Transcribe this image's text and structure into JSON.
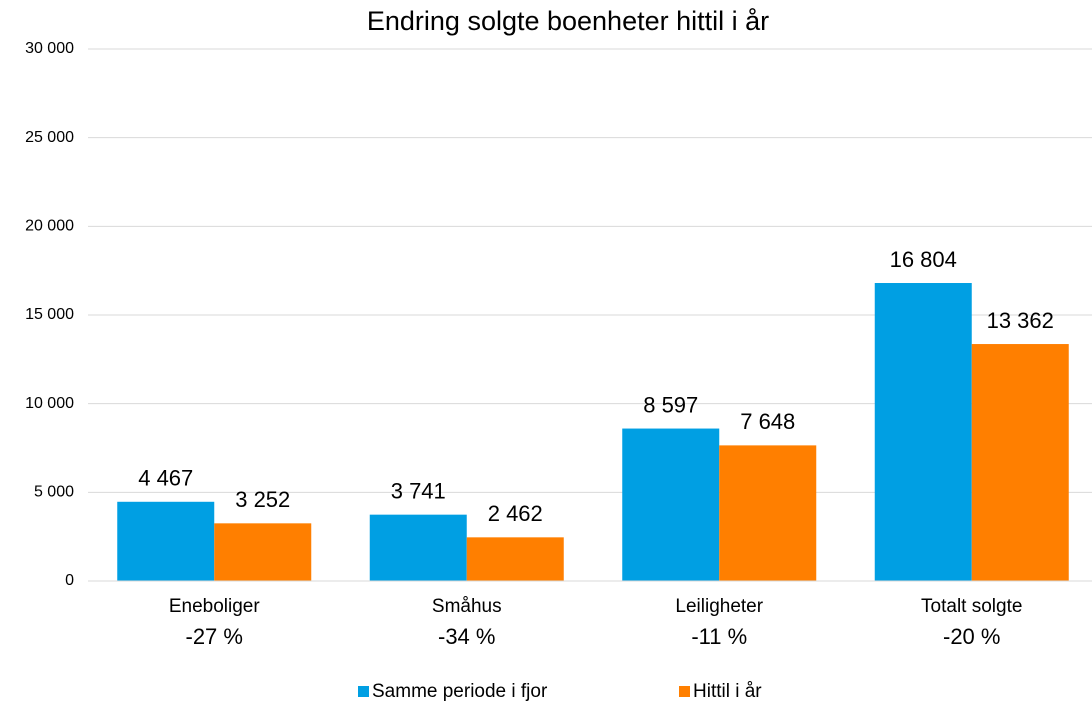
{
  "chart_data": {
    "type": "bar",
    "title": "Endring solgte boenheter hittil i år",
    "categories": [
      "Eneboliger",
      "Småhus",
      "Leiligheter",
      "Totalt solgte"
    ],
    "annotations": [
      "-27 %",
      "-34 %",
      "-11 %",
      "-20 %"
    ],
    "series": [
      {
        "name": "Samme periode i fjor",
        "color": "#009fe3",
        "values": [
          4467,
          3741,
          8597,
          16804
        ],
        "value_labels": [
          "4 467",
          "3 741",
          "8 597",
          "16 804"
        ]
      },
      {
        "name": "Hittil i år",
        "color": "#ff7f00",
        "values": [
          3252,
          2462,
          7648,
          13362
        ],
        "value_labels": [
          "3 252",
          "2 462",
          "7 648",
          "13 362"
        ]
      }
    ],
    "ylim": [
      0,
      30000
    ],
    "yticks": [
      0,
      {
        "value": 5000,
        "label": "5 000"
      },
      {
        "value": 10000,
        "label": "10 000"
      },
      {
        "value": 15000,
        "label": "15 000"
      },
      {
        "value": 20000,
        "label": "20 000"
      },
      {
        "value": 25000,
        "label": "25 000"
      },
      {
        "value": 30000,
        "label": "30 000"
      }
    ],
    "grid": true,
    "legend": "bottom"
  }
}
